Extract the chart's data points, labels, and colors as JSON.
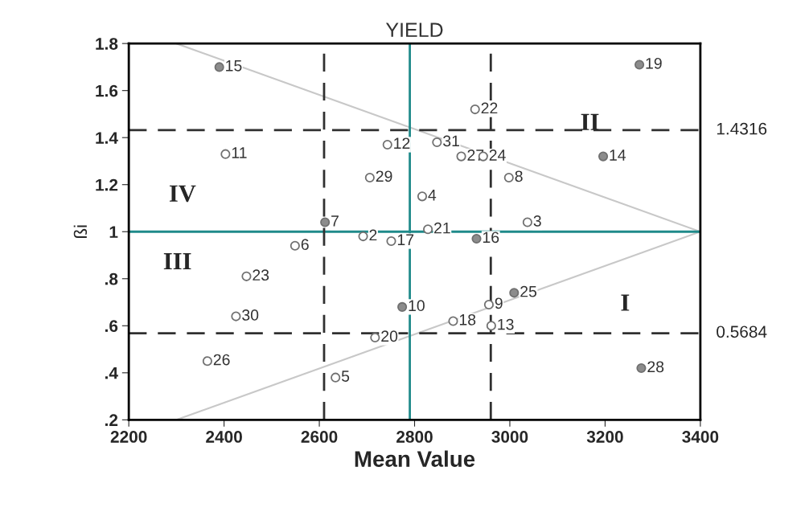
{
  "chart_data": {
    "type": "scatter",
    "title": "YIELD",
    "xlabel": "Mean Value",
    "ylabel": "ßi",
    "xlim": [
      2200,
      3400
    ],
    "xticks": [
      2200,
      2400,
      2600,
      2800,
      3000,
      3200,
      3400
    ],
    "ylim": [
      0.2,
      1.8
    ],
    "yticks": [
      {
        "value": 0.2,
        "label": ".2"
      },
      {
        "value": 0.4,
        "label": ".4"
      },
      {
        "value": 0.6,
        "label": ".6"
      },
      {
        "value": 0.8,
        "label": ".8"
      },
      {
        "value": 1,
        "label": "1"
      },
      1.2,
      1.4,
      1.6,
      1.8
    ],
    "grid": false,
    "legend": false,
    "marker": "circle",
    "series": [
      {
        "type": "line",
        "marker": "none",
        "color": "#c8c8c8",
        "x": [
          2300,
          3400
        ],
        "values": [
          1.8,
          1.0
        ]
      },
      {
        "type": "line",
        "marker": "none",
        "color": "#c8c8c8",
        "x": [
          2300,
          3400
        ],
        "values": [
          0.2,
          1.0
        ]
      },
      {
        "color": "#707070",
        "x": [
          2390,
          2403,
          2706,
          2612,
          3272,
          2927,
          2743,
          2847,
          2898,
          2944,
          3196,
          2998,
          2816,
          3037,
          2549,
          2692,
          2751,
          2447,
          2425,
          2365,
          2717,
          2634,
          2828,
          2930,
          3009,
          2774,
          2956,
          2881,
          2961,
          3276
        ],
        "values": [
          1.7,
          1.33,
          1.23,
          1.04,
          1.71,
          1.52,
          1.37,
          1.38,
          1.32,
          1.32,
          1.32,
          1.23,
          1.15,
          1.04,
          0.94,
          0.98,
          0.96,
          0.81,
          0.64,
          0.45,
          0.55,
          0.38,
          1.01,
          0.97,
          0.74,
          0.68,
          0.69,
          0.62,
          0.6,
          0.42
        ],
        "colors": [
          "#8c8c8c",
          "#ffffff",
          "#ffffff",
          "#8c8c8c",
          "#8c8c8c",
          "#ffffff",
          "#ffffff",
          "#ffffff",
          "#ffffff",
          "#ffffff",
          "#8c8c8c",
          "#ffffff",
          "#ffffff",
          "#ffffff",
          "#ffffff",
          "#ffffff",
          "#ffffff",
          "#ffffff",
          "#ffffff",
          "#ffffff",
          "#ffffff",
          "#ffffff",
          "#ffffff",
          "#8c8c8c",
          "#8c8c8c",
          "#8c8c8c",
          "#ffffff",
          "#ffffff",
          "#ffffff",
          "#8c8c8c"
        ]
      }
    ],
    "ref_lines": [
      {
        "axis": "x",
        "value": 2790,
        "color": "#1f8a8a",
        "line_style": "solid"
      },
      {
        "axis": "y",
        "value": 1,
        "color": "#1f8a8a",
        "line_style": "solid"
      },
      {
        "axis": "x",
        "value": 2610,
        "color": "#303030",
        "line_style": "dashed"
      },
      {
        "axis": "x",
        "value": 2960,
        "color": "#303030",
        "line_style": "dashed"
      },
      {
        "axis": "y",
        "value": 1.4316,
        "color": "#303030",
        "line_style": "dashed",
        "label": "1.4316"
      },
      {
        "axis": "y",
        "value": 0.5684,
        "color": "#303030",
        "line_style": "dashed",
        "label": "0.5684"
      }
    ],
    "annotations": [
      {
        "text": "15",
        "x": 2390,
        "y": 1.7
      },
      {
        "text": "11",
        "x": 2403,
        "y": 1.33
      },
      {
        "text": "29",
        "x": 2706,
        "y": 1.23
      },
      {
        "text": "7",
        "x": 2612,
        "y": 1.04
      },
      {
        "text": "19",
        "x": 3272,
        "y": 1.71
      },
      {
        "text": "22",
        "x": 2927,
        "y": 1.52
      },
      {
        "text": "12",
        "x": 2743,
        "y": 1.37
      },
      {
        "text": "31",
        "x": 2847,
        "y": 1.38
      },
      {
        "text": "27",
        "x": 2898,
        "y": 1.32
      },
      {
        "text": "24",
        "x": 2944,
        "y": 1.32
      },
      {
        "text": "14",
        "x": 3196,
        "y": 1.32
      },
      {
        "text": "8",
        "x": 2998,
        "y": 1.23
      },
      {
        "text": "4",
        "x": 2816,
        "y": 1.15
      },
      {
        "text": "3",
        "x": 3037,
        "y": 1.04
      },
      {
        "text": "6",
        "x": 2549,
        "y": 0.94
      },
      {
        "text": "2",
        "x": 2692,
        "y": 0.98
      },
      {
        "text": "17",
        "x": 2751,
        "y": 0.96
      },
      {
        "text": "23",
        "x": 2447,
        "y": 0.81
      },
      {
        "text": "30",
        "x": 2425,
        "y": 0.64
      },
      {
        "text": "26",
        "x": 2365,
        "y": 0.45
      },
      {
        "text": "20",
        "x": 2717,
        "y": 0.55
      },
      {
        "text": "5",
        "x": 2634,
        "y": 0.38
      },
      {
        "text": "21",
        "x": 2828,
        "y": 1.01
      },
      {
        "text": "16",
        "x": 2930,
        "y": 0.97
      },
      {
        "text": "25",
        "x": 3009,
        "y": 0.74
      },
      {
        "text": "10",
        "x": 2774,
        "y": 0.68
      },
      {
        "text": "9",
        "x": 2956,
        "y": 0.69
      },
      {
        "text": "18",
        "x": 2881,
        "y": 0.62
      },
      {
        "text": "13",
        "x": 2961,
        "y": 0.6
      },
      {
        "text": "28",
        "x": 3276,
        "y": 0.42
      },
      "I",
      "II",
      "III",
      "IV"
    ]
  }
}
